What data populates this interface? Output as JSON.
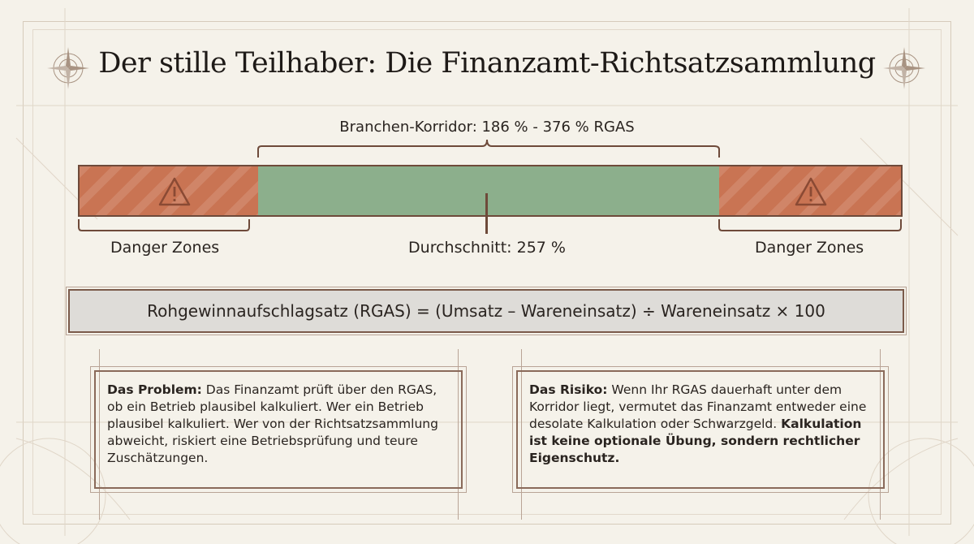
{
  "title": "Der stille Teilhaber: Die Finanzamt-Richtsatzsammlung",
  "corridor": {
    "label": "Branchen-Korridor: 186 % - 376 % RGAS"
  },
  "bar": {
    "left_zone_label": "Danger Zones",
    "right_zone_label": "Danger Zones",
    "average_label": "Durchschnitt: 257 %",
    "colors": {
      "danger": "#c97453",
      "corridor": "#8caf8c"
    }
  },
  "formula": "Rohgewinnaufschlagsatz (RGAS) = (Umsatz – Wareneinsatz) ÷ Wareneinsatz × 100",
  "cards": {
    "problem": {
      "heading": "Das Problem:",
      "text": " Das Finanzamt prüft über den RGAS, ob ein Betrieb plausibel kalkuliert. Wer ein Betrieb plausibel kalkuliert. Wer von der Richtsatzsammlung abweicht, riskiert eine Betriebsprüfung und teure Zuschätzungen."
    },
    "risk": {
      "heading": "Das Risiko:",
      "text": " Wenn Ihr RGAS dauerhaft unter dem Korridor liegt, vermutet das Finanzamt entweder eine desolate Kalkulation oder Schwarzgeld. ",
      "emphasis": "Kalkulation ist keine optionale Übung, sondern rechtlicher Eigenschutz."
    }
  },
  "icons": [
    "compass-rose-icon",
    "warning-triangle-icon"
  ]
}
